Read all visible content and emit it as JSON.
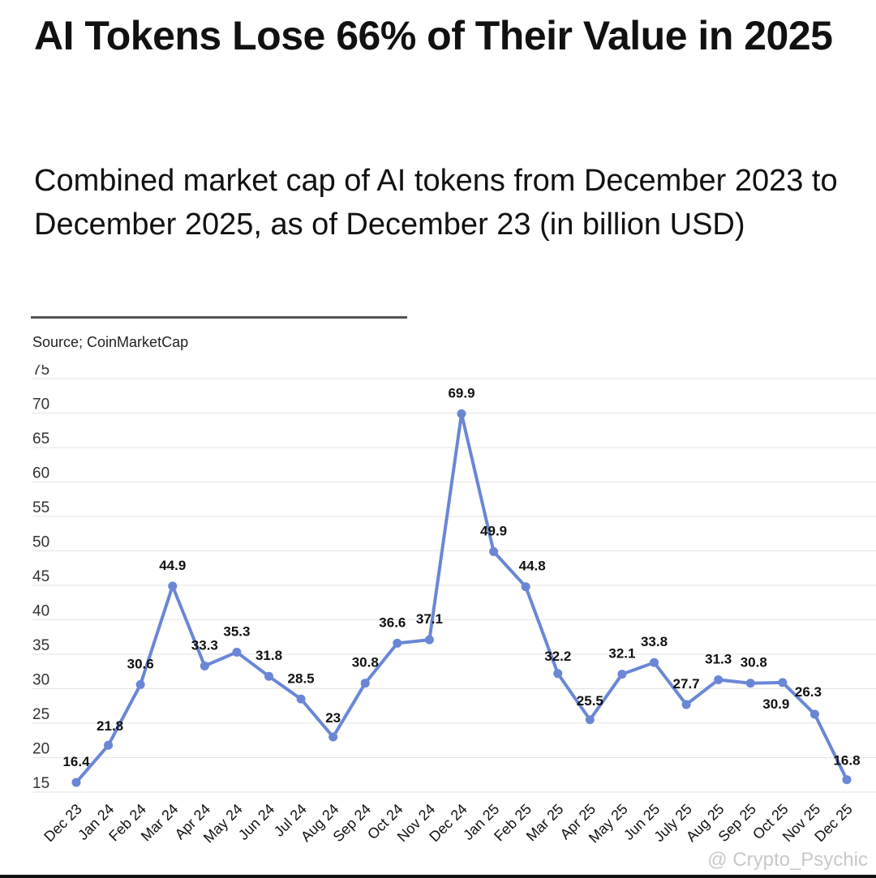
{
  "header": {
    "title": "AI Tokens Lose 66% of Their Value in 2025",
    "subtitle": "Combined market cap of AI tokens from December 2023 to December 2025, as of December 23 (in billion USD)",
    "source": "Source; CoinMarketCap"
  },
  "watermark": "@ Crypto_Psychic",
  "chart_data": {
    "type": "line",
    "title": "AI Tokens Lose 66% of Their Value in 2025",
    "subtitle": "Combined market cap of AI tokens from December 2023 to December 2025, as of December 23 (in billion USD)",
    "xlabel": "",
    "ylabel": "",
    "ylim": [
      15,
      75
    ],
    "yticks": [
      15,
      20,
      25,
      30,
      35,
      40,
      45,
      50,
      55,
      60,
      65,
      70,
      75
    ],
    "grid": true,
    "legend": "none",
    "color": "#6a86d6",
    "categories": [
      "Dec 23",
      "Jan 24",
      "Feb 24",
      "Mar 24",
      "Apr 24",
      "May 24",
      "Jun 24",
      "Jul 24",
      "Aug 24",
      "Sep 24",
      "Oct 24",
      "Nov 24",
      "Dec 24",
      "Jan 25",
      "Feb 25",
      "Mar 25",
      "Apr 25",
      "May 25",
      "Jun 25",
      "July 25",
      "Aug 25",
      "Sep 25",
      "Oct 25",
      "Nov 25",
      "Dec 25"
    ],
    "values": [
      16.4,
      21.8,
      30.6,
      44.9,
      33.3,
      35.3,
      31.8,
      28.5,
      23,
      30.8,
      36.6,
      37.1,
      69.9,
      49.9,
      44.8,
      32.2,
      25.5,
      32.1,
      33.8,
      27.7,
      31.3,
      30.8,
      30.9,
      26.3,
      16.8
    ]
  }
}
